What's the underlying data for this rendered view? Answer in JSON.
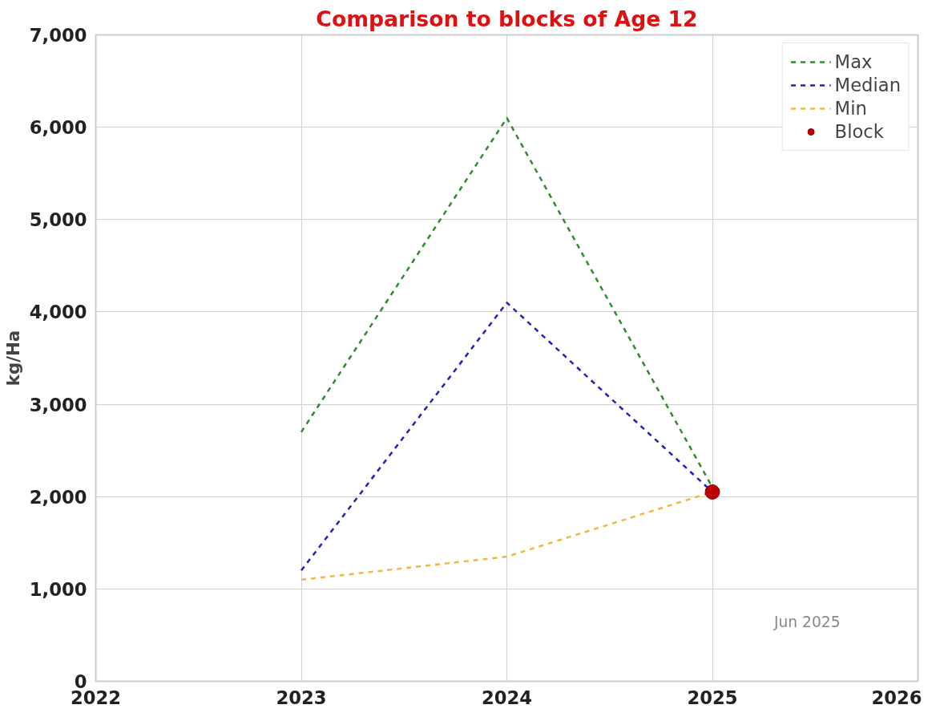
{
  "chart_data": {
    "type": "line",
    "title": "Comparison to blocks of Age 12",
    "ylabel": "kg/Ha",
    "x": [
      2023,
      2024,
      2025
    ],
    "series": [
      {
        "name": "Max",
        "color": "#2e8b2e",
        "values": [
          2700,
          6100,
          2100
        ]
      },
      {
        "name": "Median",
        "color": "#2222bb",
        "values": [
          1200,
          4100,
          2050
        ]
      },
      {
        "name": "Min",
        "color": "#f0b840",
        "values": [
          1100,
          1350,
          2050
        ]
      },
      {
        "name": "Block",
        "color": "#c00000",
        "type": "scatter",
        "marker": "circle",
        "x": [
          2025
        ],
        "values": [
          2050
        ]
      }
    ],
    "xlim": [
      2022,
      2026
    ],
    "xticks": [
      2022,
      2023,
      2024,
      2025,
      2026
    ],
    "ylim": [
      0,
      7000
    ],
    "yticks": [
      {
        "value": 0,
        "label": "0"
      },
      {
        "value": 1000,
        "label": "1,000"
      },
      {
        "value": 2000,
        "label": "2,000"
      },
      {
        "value": 3000,
        "label": "3,000"
      },
      {
        "value": 4000,
        "label": "4,000"
      },
      {
        "value": 5000,
        "label": "5,000"
      },
      {
        "value": 6000,
        "label": "6,000"
      },
      {
        "value": 7000,
        "label": "7,000"
      }
    ],
    "annotations": [
      "Jun 2025"
    ],
    "grid": true,
    "legend": "top right",
    "line_style": "dashed"
  }
}
